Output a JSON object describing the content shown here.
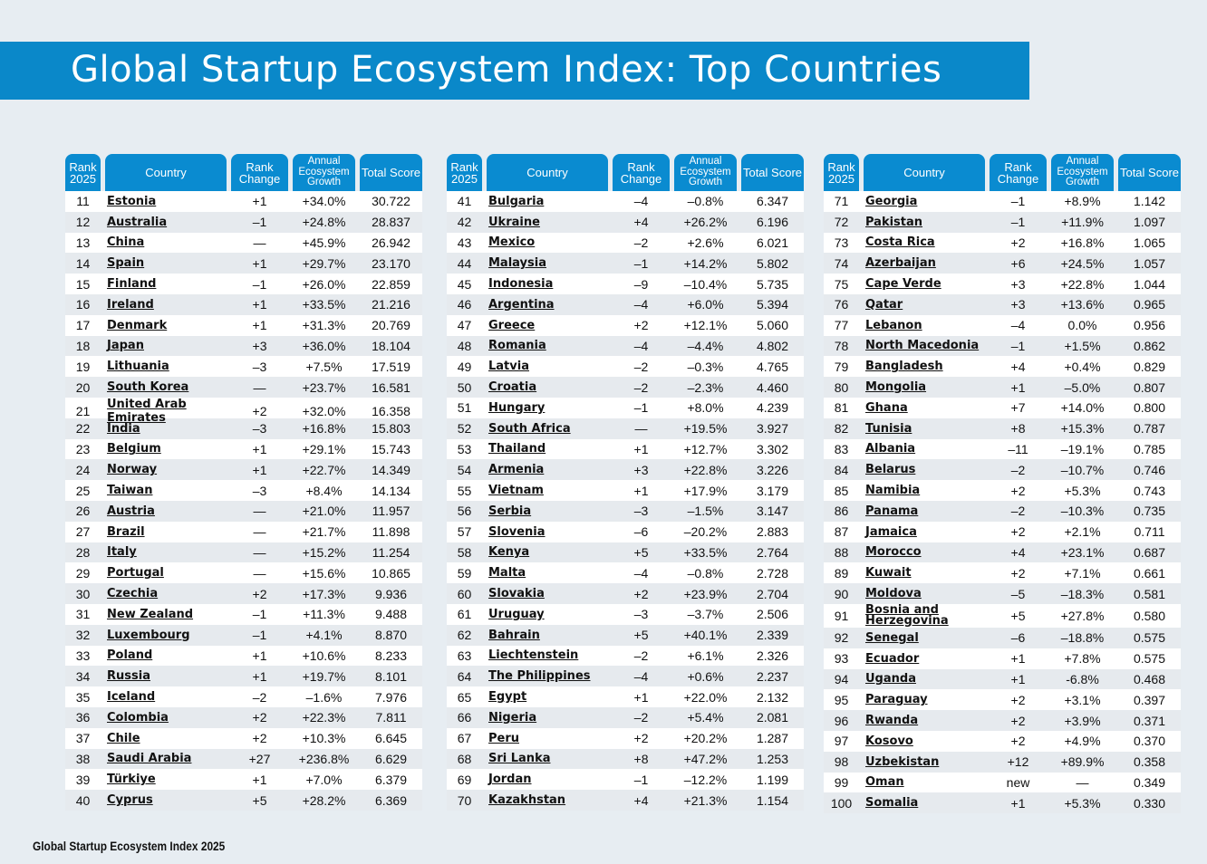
{
  "title": "Global Startup Ecosystem Index: Top Countries",
  "footer": "Global Startup Ecosystem Index 2025",
  "colors": {
    "banner": "#0a88c9",
    "header": "#0a8bd0",
    "row_alt": "#e6eaee"
  },
  "headers": {
    "rank": "Rank 2025",
    "country": "Country",
    "change": "Rank Change",
    "growth": "Annual Ecosystem Growth",
    "score": "Total Score"
  },
  "tables": [
    {
      "rows": [
        [
          "11",
          "Estonia",
          "+1",
          "+34.0%",
          "30.722"
        ],
        [
          "12",
          "Australia",
          "–1",
          "+24.8%",
          "28.837"
        ],
        [
          "13",
          "China",
          "—",
          "+45.9%",
          "26.942"
        ],
        [
          "14",
          "Spain",
          "+1",
          "+29.7%",
          "23.170"
        ],
        [
          "15",
          "Finland",
          "–1",
          "+26.0%",
          "22.859"
        ],
        [
          "16",
          "Ireland",
          "+1",
          "+33.5%",
          "21.216"
        ],
        [
          "17",
          "Denmark",
          "+1",
          "+31.3%",
          "20.769"
        ],
        [
          "18",
          "Japan",
          "+3",
          "+36.0%",
          "18.104"
        ],
        [
          "19",
          "Lithuania",
          "–3",
          "+7.5%",
          "17.519"
        ],
        [
          "20",
          "South Korea",
          "—",
          "+23.7%",
          "16.581"
        ],
        [
          "21",
          "United Arab Emirates",
          "+2",
          "+32.0%",
          "16.358"
        ],
        [
          "22",
          "India",
          "–3",
          "+16.8%",
          "15.803"
        ],
        [
          "23",
          "Belgium",
          "+1",
          "+29.1%",
          "15.743"
        ],
        [
          "24",
          "Norway",
          "+1",
          "+22.7%",
          "14.349"
        ],
        [
          "25",
          "Taiwan",
          "–3",
          "+8.4%",
          "14.134"
        ],
        [
          "26",
          "Austria",
          "—",
          "+21.0%",
          "11.957"
        ],
        [
          "27",
          "Brazil",
          "—",
          "+21.7%",
          "11.898"
        ],
        [
          "28",
          "Italy",
          "—",
          "+15.2%",
          "11.254"
        ],
        [
          "29",
          "Portugal",
          "—",
          "+15.6%",
          "10.865"
        ],
        [
          "30",
          "Czechia",
          "+2",
          "+17.3%",
          "9.936"
        ],
        [
          "31",
          "New Zealand",
          "–1",
          "+11.3%",
          "9.488"
        ],
        [
          "32",
          "Luxembourg",
          "–1",
          "+4.1%",
          "8.870"
        ],
        [
          "33",
          "Poland",
          "+1",
          "+10.6%",
          "8.233"
        ],
        [
          "34",
          "Russia",
          "+1",
          "+19.7%",
          "8.101"
        ],
        [
          "35",
          "Iceland",
          "–2",
          "–1.6%",
          "7.976"
        ],
        [
          "36",
          "Colombia",
          "+2",
          "+22.3%",
          "7.811"
        ],
        [
          "37",
          "Chile",
          "+2",
          "+10.3%",
          "6.645"
        ],
        [
          "38",
          "Saudi Arabia",
          "+27",
          "+236.8%",
          "6.629"
        ],
        [
          "39",
          "Türkiye",
          "+1",
          "+7.0%",
          "6.379"
        ],
        [
          "40",
          "Cyprus",
          "+5",
          "+28.2%",
          "6.369"
        ]
      ]
    },
    {
      "rows": [
        [
          "41",
          "Bulgaria",
          "–4",
          "–0.8%",
          "6.347"
        ],
        [
          "42",
          "Ukraine",
          "+4",
          "+26.2%",
          "6.196"
        ],
        [
          "43",
          "Mexico",
          "–2",
          "+2.6%",
          "6.021"
        ],
        [
          "44",
          "Malaysia",
          "–1",
          "+14.2%",
          "5.802"
        ],
        [
          "45",
          "Indonesia",
          "–9",
          "–10.4%",
          "5.735"
        ],
        [
          "46",
          "Argentina",
          "–4",
          "+6.0%",
          "5.394"
        ],
        [
          "47",
          "Greece",
          "+2",
          "+12.1%",
          "5.060"
        ],
        [
          "48",
          "Romania",
          "–4",
          "–4.4%",
          "4.802"
        ],
        [
          "49",
          "Latvia",
          "–2",
          "–0.3%",
          "4.765"
        ],
        [
          "50",
          "Croatia",
          "–2",
          "–2.3%",
          "4.460"
        ],
        [
          "51",
          "Hungary",
          "–1",
          "+8.0%",
          "4.239"
        ],
        [
          "52",
          "South Africa",
          "—",
          "+19.5%",
          "3.927"
        ],
        [
          "53",
          "Thailand",
          "+1",
          "+12.7%",
          "3.302"
        ],
        [
          "54",
          "Armenia",
          "+3",
          "+22.8%",
          "3.226"
        ],
        [
          "55",
          "Vietnam",
          "+1",
          "+17.9%",
          "3.179"
        ],
        [
          "56",
          "Serbia",
          "–3",
          "–1.5%",
          "3.147"
        ],
        [
          "57",
          "Slovenia",
          "–6",
          "–20.2%",
          "2.883"
        ],
        [
          "58",
          "Kenya",
          "+5",
          "+33.5%",
          "2.764"
        ],
        [
          "59",
          "Malta",
          "–4",
          "–0.8%",
          "2.728"
        ],
        [
          "60",
          "Slovakia",
          "+2",
          "+23.9%",
          "2.704"
        ],
        [
          "61",
          "Uruguay",
          "–3",
          "–3.7%",
          "2.506"
        ],
        [
          "62",
          "Bahrain",
          "+5",
          "+40.1%",
          "2.339"
        ],
        [
          "63",
          "Liechtenstein",
          "–2",
          "+6.1%",
          "2.326"
        ],
        [
          "64",
          "The Philippines",
          "–4",
          "+0.6%",
          "2.237"
        ],
        [
          "65",
          "Egypt",
          "+1",
          "+22.0%",
          "2.132"
        ],
        [
          "66",
          "Nigeria",
          "–2",
          "+5.4%",
          "2.081"
        ],
        [
          "67",
          "Peru",
          "+2",
          "+20.2%",
          "1.287"
        ],
        [
          "68",
          "Sri Lanka",
          "+8",
          "+47.2%",
          "1.253"
        ],
        [
          "69",
          "Jordan",
          "–1",
          "–12.2%",
          "1.199"
        ],
        [
          "70",
          "Kazakhstan",
          "+4",
          "+21.3%",
          "1.154"
        ]
      ]
    },
    {
      "rows": [
        [
          "71",
          "Georgia",
          "–1",
          "+8.9%",
          "1.142"
        ],
        [
          "72",
          "Pakistan",
          "–1",
          "+11.9%",
          "1.097"
        ],
        [
          "73",
          "Costa Rica",
          "+2",
          "+16.8%",
          "1.065"
        ],
        [
          "74",
          "Azerbaijan",
          "+6",
          "+24.5%",
          "1.057"
        ],
        [
          "75",
          "Cape Verde",
          "+3",
          "+22.8%",
          "1.044"
        ],
        [
          "76",
          "Qatar",
          "+3",
          "+13.6%",
          "0.965"
        ],
        [
          "77",
          "Lebanon",
          "–4",
          "0.0%",
          "0.956"
        ],
        [
          "78",
          "North Macedonia",
          "–1",
          "+1.5%",
          "0.862"
        ],
        [
          "79",
          "Bangladesh",
          "+4",
          "+0.4%",
          "0.829"
        ],
        [
          "80",
          "Mongolia",
          "+1",
          "–5.0%",
          "0.807"
        ],
        [
          "81",
          "Ghana",
          "+7",
          "+14.0%",
          "0.800"
        ],
        [
          "82",
          "Tunisia",
          "+8",
          "+15.3%",
          "0.787"
        ],
        [
          "83",
          "Albania",
          "–11",
          "–19.1%",
          "0.785"
        ],
        [
          "84",
          "Belarus",
          "–2",
          "–10.7%",
          "0.746"
        ],
        [
          "85",
          "Namibia",
          "+2",
          "+5.3%",
          "0.743"
        ],
        [
          "86",
          "Panama",
          "–2",
          "–10.3%",
          "0.735"
        ],
        [
          "87",
          "Jamaica",
          "+2",
          "+2.1%",
          "0.711"
        ],
        [
          "88",
          "Morocco",
          "+4",
          "+23.1%",
          "0.687"
        ],
        [
          "89",
          "Kuwait",
          "+2",
          "+7.1%",
          "0.661"
        ],
        [
          "90",
          "Moldova",
          "–5",
          "–18.3%",
          "0.581"
        ],
        [
          "91",
          "Bosnia and Herzegovina",
          "+5",
          "+27.8%",
          "0.580"
        ],
        [
          "92",
          "Senegal",
          "–6",
          "–18.8%",
          "0.575"
        ],
        [
          "93",
          "Ecuador",
          "+1",
          "+7.8%",
          "0.575"
        ],
        [
          "94",
          "Uganda",
          "+1",
          "-6.8%",
          "0.468"
        ],
        [
          "95",
          "Paraguay",
          "+2",
          "+3.1%",
          "0.397"
        ],
        [
          "96",
          "Rwanda",
          "+2",
          "+3.9%",
          "0.371"
        ],
        [
          "97",
          "Kosovo",
          "+2",
          "+4.9%",
          "0.370"
        ],
        [
          "98",
          "Uzbekistan",
          "+12",
          "+89.9%",
          "0.358"
        ],
        [
          "99",
          "Oman",
          "new",
          "—",
          "0.349"
        ],
        [
          "100",
          "Somalia",
          "+1",
          "+5.3%",
          "0.330"
        ]
      ]
    }
  ]
}
